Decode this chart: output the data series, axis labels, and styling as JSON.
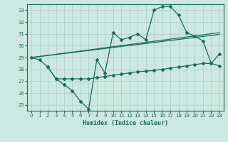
{
  "xlabel": "Humidex (Indice chaleur)",
  "background_color": "#cce8e0",
  "grid_color": "#aacfc8",
  "line_color": "#1a6b5a",
  "xlim": [
    -0.5,
    23.5
  ],
  "ylim": [
    24.5,
    33.5
  ],
  "yticks": [
    25,
    26,
    27,
    28,
    29,
    30,
    31,
    32,
    33
  ],
  "xticks": [
    0,
    1,
    2,
    3,
    4,
    5,
    6,
    7,
    8,
    9,
    10,
    11,
    12,
    13,
    14,
    15,
    16,
    17,
    18,
    19,
    20,
    21,
    22,
    23
  ],
  "series1_x": [
    0,
    1,
    2,
    3,
    4,
    5,
    6,
    7,
    8,
    9,
    10,
    11,
    12,
    13,
    14,
    15,
    16,
    17,
    18,
    19,
    20,
    21,
    22,
    23
  ],
  "series1_y": [
    29.0,
    28.8,
    28.2,
    27.2,
    26.7,
    26.2,
    25.3,
    24.65,
    28.8,
    27.7,
    31.1,
    30.5,
    30.7,
    31.0,
    30.5,
    33.0,
    33.3,
    33.3,
    32.6,
    31.1,
    30.8,
    30.4,
    28.5,
    29.3
  ],
  "series2_x": [
    2,
    3,
    4,
    5,
    6,
    7,
    8,
    9,
    10,
    11,
    12,
    13,
    14,
    15,
    16,
    17,
    18,
    19,
    20,
    21,
    22,
    23
  ],
  "series2_y": [
    28.2,
    27.2,
    27.2,
    27.2,
    27.2,
    27.2,
    27.3,
    27.4,
    27.5,
    27.6,
    27.7,
    27.8,
    27.85,
    27.9,
    28.0,
    28.1,
    28.2,
    28.3,
    28.4,
    28.5,
    28.5,
    28.3
  ],
  "series3_x": [
    0,
    23
  ],
  "series3_y": [
    29.0,
    30.95
  ],
  "series4_x": [
    0,
    23
  ],
  "series4_y": [
    29.0,
    31.1
  ]
}
